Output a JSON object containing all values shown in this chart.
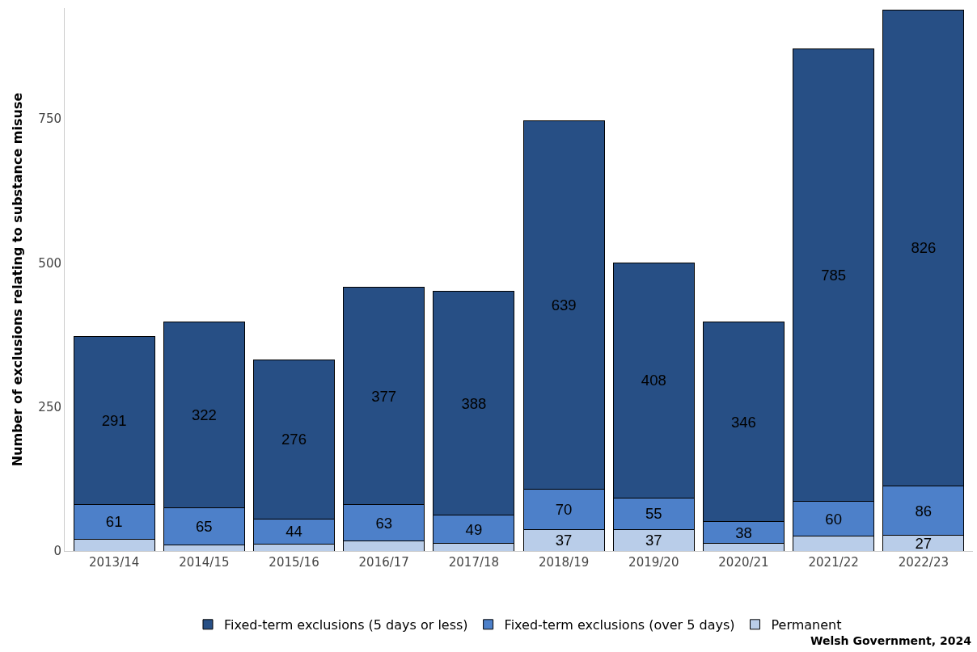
{
  "chart_data": {
    "type": "bar",
    "stacked": true,
    "ylabel": "Number of exclusions relating to substance misuse",
    "categories": [
      "2013/14",
      "2014/15",
      "2015/16",
      "2016/17",
      "2017/18",
      "2018/19",
      "2019/20",
      "2020/21",
      "2021/22",
      "2022/23"
    ],
    "series": [
      {
        "name": "Permanent",
        "color": "#b9cde9",
        "values": [
          20,
          10,
          12,
          17,
          13,
          37,
          37,
          13,
          26,
          27
        ],
        "value_labels": [
          null,
          null,
          null,
          null,
          null,
          "37",
          "37",
          null,
          null,
          "27"
        ]
      },
      {
        "name": "Fixed-term exclusions (over 5 days)",
        "color": "#4d80c9",
        "values": [
          61,
          65,
          44,
          63,
          49,
          70,
          55,
          38,
          60,
          86
        ],
        "value_labels": [
          "61",
          "65",
          "44",
          "63",
          "49",
          "70",
          "55",
          "38",
          "60",
          "86"
        ]
      },
      {
        "name": "Fixed-term exclusions (5 days or less)",
        "color": "#274f85",
        "values": [
          291,
          322,
          276,
          377,
          388,
          639,
          408,
          346,
          785,
          826
        ],
        "value_labels": [
          "291",
          "322",
          "276",
          "377",
          "388",
          "639",
          "408",
          "346",
          "785",
          "826"
        ]
      }
    ],
    "ylim": [
      0,
      942
    ],
    "yticks": [
      0,
      250,
      500,
      750
    ],
    "legend": "bottom",
    "annotations": [
      "Welsh Government, 2024"
    ]
  }
}
